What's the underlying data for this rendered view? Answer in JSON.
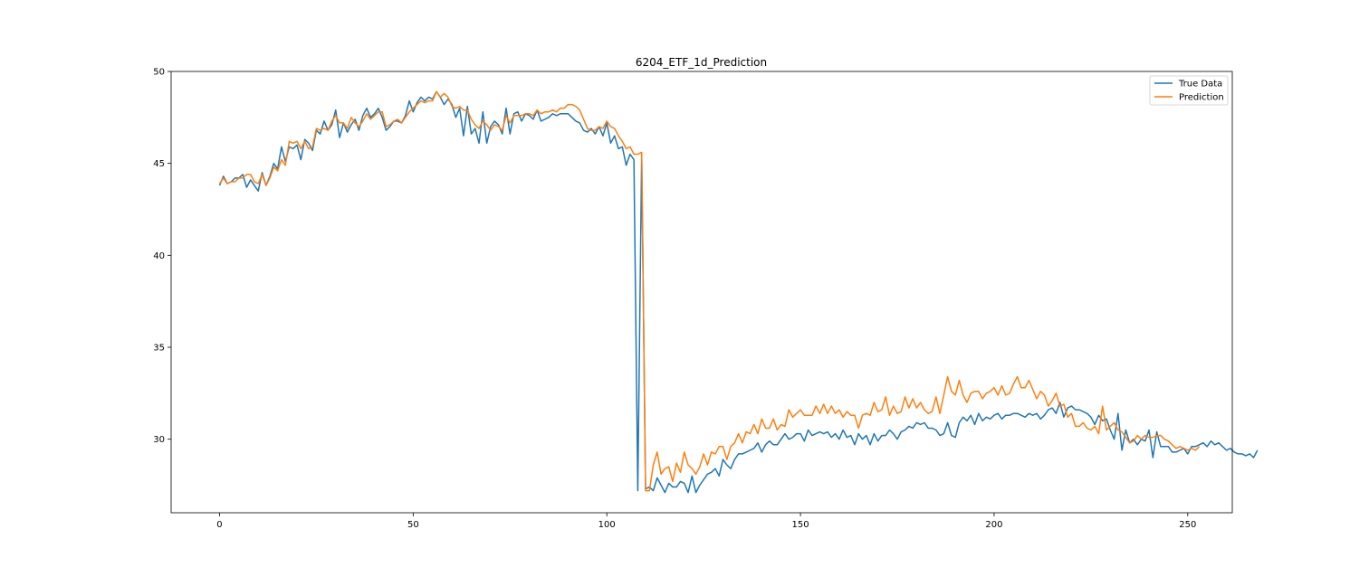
{
  "chart_data": {
    "type": "line",
    "title": "6204_ETF_1d_Prediction",
    "xlabel": "",
    "ylabel": "",
    "xlim": [
      -12.5,
      261.5
    ],
    "ylim": [
      26.0,
      50.0
    ],
    "x_ticks": [
      0,
      50,
      100,
      150,
      200,
      250
    ],
    "y_ticks": [
      30,
      35,
      40,
      45,
      50
    ],
    "grid": false,
    "legend_position": "top-right",
    "colors": {
      "true_data": "#1f77b4",
      "prediction": "#ff7f0e"
    },
    "series": [
      {
        "name": "True Data",
        "color": "#1f77b4",
        "values": [
          43.8,
          44.3,
          43.9,
          44.0,
          44.2,
          44.2,
          44.4,
          43.7,
          44.1,
          43.8,
          43.5,
          44.5,
          43.8,
          44.3,
          45.0,
          44.7,
          45.9,
          45.1,
          45.9,
          45.8,
          46.0,
          45.2,
          46.3,
          46.1,
          45.7,
          46.8,
          46.6,
          47.3,
          46.8,
          47.1,
          47.9,
          46.4,
          47.2,
          46.7,
          47.1,
          47.4,
          46.8,
          47.6,
          48.0,
          47.5,
          47.7,
          48.0,
          47.5,
          46.8,
          47.0,
          47.3,
          47.3,
          47.2,
          47.6,
          48.4,
          47.8,
          48.3,
          48.6,
          48.4,
          48.6,
          48.5,
          48.9,
          48.6,
          48.2,
          48.5,
          48.2,
          47.5,
          48.0,
          46.5,
          48.1,
          46.6,
          46.9,
          46.1,
          47.8,
          46.1,
          47.0,
          47.3,
          47.1,
          46.6,
          48.0,
          46.6,
          47.7,
          47.8,
          47.3,
          47.7,
          47.6,
          47.4,
          47.9,
          47.3,
          47.4,
          47.5,
          47.7,
          47.6,
          47.7,
          47.7,
          47.7,
          47.5,
          47.3,
          47.2,
          46.8,
          46.7,
          46.9,
          46.6,
          47.0,
          46.5,
          47.2,
          46.1,
          46.5,
          45.8,
          45.9,
          44.9,
          45.5,
          45.2,
          27.2,
          45.5,
          27.3,
          27.4,
          27.2,
          27.9,
          27.5,
          27.1,
          27.6,
          27.4,
          27.4,
          27.7,
          27.6,
          27.1,
          28.0,
          27.1,
          27.5,
          27.8,
          28.1,
          28.2,
          28.4,
          28.0,
          28.9,
          28.6,
          28.4,
          28.9,
          29.2,
          29.2,
          29.3,
          29.4,
          29.5,
          29.8,
          29.3,
          29.7,
          29.9,
          29.7,
          29.7,
          30.0,
          30.3,
          30.0,
          30.1,
          30.3,
          30.3,
          29.9,
          30.5,
          30.2,
          30.3,
          30.4,
          30.3,
          30.4,
          30.1,
          30.3,
          30.0,
          30.5,
          30.1,
          30.2,
          29.7,
          30.3,
          30.0,
          30.2,
          29.7,
          30.3,
          29.9,
          30.2,
          30.2,
          30.5,
          30.3,
          30.0,
          30.4,
          30.5,
          30.7,
          30.6,
          30.9,
          30.8,
          30.9,
          30.6,
          30.6,
          30.5,
          30.2,
          30.3,
          30.9,
          30.2,
          30.1,
          30.9,
          31.2,
          31.0,
          31.3,
          30.8,
          31.4,
          31.0,
          31.2,
          31.1,
          31.3,
          31.4,
          31.1,
          31.3,
          31.3,
          31.4,
          31.4,
          31.3,
          31.2,
          31.4,
          31.3,
          31.4,
          31.1,
          31.3,
          31.6,
          31.7,
          31.4,
          32.0,
          31.2,
          31.7,
          31.8,
          31.6,
          31.6,
          31.5,
          31.4,
          31.2,
          30.8,
          31.3,
          31.0,
          31.1,
          30.5,
          30.0,
          31.4,
          29.4,
          30.5,
          29.8,
          30.0,
          29.7,
          30.0,
          29.9,
          30.5,
          29.0,
          30.4,
          29.6,
          29.6,
          29.6,
          29.3,
          29.3,
          29.4,
          29.5,
          29.2,
          29.6,
          29.6,
          29.7,
          29.8,
          29.6,
          29.9,
          29.7,
          29.8,
          29.6,
          29.4,
          29.5,
          29.3,
          29.2,
          29.2,
          29.1,
          29.2,
          29.0,
          29.4
        ]
      },
      {
        "name": "Prediction",
        "color": "#ff7f0e",
        "values": [
          43.9,
          44.2,
          43.9,
          44.0,
          44.0,
          44.2,
          44.2,
          44.4,
          44.4,
          44.0,
          43.9,
          44.4,
          43.8,
          44.2,
          44.8,
          44.6,
          45.2,
          44.9,
          46.2,
          46.1,
          46.2,
          45.8,
          46.2,
          45.8,
          45.9,
          46.9,
          46.8,
          46.9,
          46.8,
          47.3,
          47.6,
          47.2,
          47.2,
          46.9,
          47.5,
          47.2,
          47.0,
          47.3,
          47.7,
          47.4,
          47.6,
          47.8,
          47.8,
          47.0,
          47.1,
          47.3,
          47.4,
          47.2,
          47.5,
          47.8,
          48.0,
          48.2,
          48.4,
          48.3,
          48.4,
          48.4,
          48.9,
          48.6,
          48.8,
          48.6,
          48.1,
          48.0,
          48.1,
          47.9,
          47.9,
          47.4,
          47.1,
          46.9,
          47.3,
          47.1,
          46.8,
          47.1,
          47.0,
          46.8,
          47.6,
          47.2,
          47.6,
          47.6,
          47.6,
          47.7,
          47.7,
          47.6,
          47.9,
          47.7,
          47.8,
          47.8,
          47.9,
          47.8,
          48.0,
          48.0,
          48.2,
          48.2,
          48.1,
          47.9,
          47.4,
          46.9,
          46.8,
          46.8,
          47.0,
          46.9,
          47.3,
          47.0,
          46.9,
          46.5,
          46.2,
          45.8,
          45.9,
          45.5,
          45.5,
          45.6,
          27.2,
          27.2,
          28.6,
          29.3,
          28.1,
          28.4,
          28.5,
          27.7,
          28.7,
          28.2,
          29.3,
          28.6,
          28.4,
          28.1,
          28.5,
          29.2,
          28.6,
          29.3,
          29.2,
          29.6,
          29.6,
          28.9,
          29.6,
          29.8,
          30.3,
          29.8,
          30.4,
          30.3,
          30.8,
          30.3,
          31.1,
          30.6,
          30.6,
          31.1,
          30.5,
          30.8,
          30.7,
          31.6,
          31.2,
          31.4,
          31.6,
          31.3,
          31.3,
          31.3,
          31.8,
          31.4,
          31.9,
          31.4,
          31.8,
          31.4,
          31.6,
          31.2,
          31.5,
          31.3,
          31.3,
          30.6,
          31.3,
          31.4,
          31.3,
          32.0,
          31.5,
          31.6,
          32.3,
          31.3,
          31.8,
          31.4,
          31.5,
          32.3,
          31.7,
          32.2,
          31.7,
          32.0,
          31.6,
          31.4,
          31.5,
          32.3,
          31.4,
          32.4,
          33.4,
          32.6,
          32.4,
          33.2,
          32.4,
          32.0,
          32.5,
          32.6,
          32.6,
          32.2,
          32.5,
          32.6,
          32.8,
          32.4,
          32.9,
          32.4,
          32.5,
          33.0,
          33.4,
          32.8,
          32.8,
          33.2,
          32.7,
          32.2,
          32.6,
          32.4,
          31.8,
          32.1,
          32.5,
          31.8,
          31.9,
          31.2,
          31.4,
          30.7,
          30.7,
          30.9,
          30.6,
          30.5,
          30.7,
          30.3,
          31.8,
          30.5,
          30.7,
          30.9,
          30.5,
          30.4,
          30.1,
          29.8,
          29.9,
          30.2,
          30.0,
          30.2,
          30.1,
          30.1,
          30.2,
          30.2,
          30.0,
          29.9,
          29.7,
          29.5,
          29.6,
          29.5,
          29.4,
          29.5,
          29.4,
          29.6
        ]
      }
    ]
  }
}
